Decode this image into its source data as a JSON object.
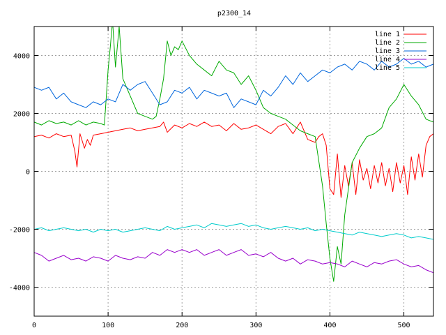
{
  "chart_data": {
    "type": "line",
    "title": "p2300_14",
    "xlabel": "",
    "ylabel": "",
    "xlim": [
      0,
      540
    ],
    "ylim": [
      -5000,
      5000
    ],
    "grid": true,
    "legend_position": "top-right",
    "x_ticks": [
      0,
      100,
      200,
      300,
      400,
      500
    ],
    "y_ticks": [
      -4000,
      -2000,
      0,
      2000,
      4000
    ],
    "series": [
      {
        "name": "line 1",
        "color": "#ff0000",
        "x": [
          0,
          10,
          20,
          30,
          40,
          50,
          55,
          58,
          62,
          68,
          72,
          76,
          80,
          90,
          100,
          110,
          120,
          130,
          140,
          150,
          160,
          170,
          175,
          180,
          190,
          200,
          210,
          220,
          230,
          240,
          250,
          260,
          270,
          280,
          290,
          300,
          310,
          320,
          330,
          340,
          350,
          360,
          370,
          380,
          385,
          390,
          395,
          400,
          405,
          410,
          415,
          420,
          425,
          430,
          435,
          440,
          445,
          450,
          455,
          460,
          465,
          470,
          475,
          480,
          485,
          490,
          495,
          500,
          505,
          510,
          515,
          520,
          525,
          530,
          535,
          540
        ],
        "y": [
          1200,
          1250,
          1150,
          1300,
          1200,
          1250,
          700,
          150,
          1300,
          800,
          1100,
          900,
          1250,
          1300,
          1350,
          1400,
          1450,
          1500,
          1400,
          1450,
          1500,
          1550,
          1700,
          1350,
          1600,
          1500,
          1650,
          1550,
          1700,
          1550,
          1600,
          1400,
          1650,
          1450,
          1500,
          1600,
          1450,
          1300,
          1550,
          1650,
          1300,
          1700,
          1100,
          1000,
          1200,
          1300,
          900,
          -600,
          -800,
          600,
          -900,
          200,
          -500,
          300,
          -800,
          400,
          -300,
          100,
          -600,
          200,
          -400,
          300,
          -500,
          100,
          -700,
          300,
          -400,
          200,
          -800,
          500,
          -300,
          600,
          -200,
          900,
          1200,
          1300
        ]
      },
      {
        "name": "line 2",
        "color": "#00aa00",
        "x": [
          0,
          10,
          20,
          30,
          40,
          50,
          60,
          70,
          80,
          90,
          95,
          100,
          103,
          106,
          110,
          115,
          120,
          130,
          140,
          150,
          160,
          165,
          170,
          175,
          180,
          185,
          190,
          195,
          200,
          210,
          220,
          230,
          240,
          250,
          260,
          270,
          280,
          290,
          300,
          310,
          320,
          330,
          340,
          350,
          360,
          370,
          380,
          390,
          395,
          400,
          405,
          410,
          415,
          420,
          430,
          440,
          450,
          460,
          470,
          480,
          490,
          500,
          510,
          520,
          530,
          540
        ],
        "y": [
          1700,
          1600,
          1750,
          1650,
          1700,
          1600,
          1750,
          1600,
          1700,
          1650,
          1600,
          3500,
          4300,
          5200,
          3600,
          5000,
          3200,
          2600,
          2000,
          1900,
          1800,
          1900,
          2500,
          3200,
          4500,
          4000,
          4300,
          4200,
          4500,
          4000,
          3700,
          3500,
          3300,
          3800,
          3500,
          3400,
          3000,
          3300,
          2800,
          2200,
          2000,
          1900,
          1800,
          1600,
          1400,
          1300,
          1200,
          -500,
          -1800,
          -3000,
          -3800,
          -2600,
          -3200,
          -1500,
          300,
          800,
          1200,
          1300,
          1500,
          2200,
          2500,
          3000,
          2600,
          2300,
          1800,
          1700
        ]
      },
      {
        "name": "line 3",
        "color": "#0066dd",
        "x": [
          0,
          10,
          20,
          30,
          40,
          50,
          60,
          70,
          80,
          90,
          100,
          110,
          120,
          130,
          140,
          150,
          160,
          170,
          180,
          190,
          200,
          210,
          220,
          230,
          240,
          250,
          260,
          270,
          280,
          290,
          300,
          310,
          320,
          330,
          340,
          350,
          360,
          370,
          380,
          390,
          400,
          410,
          420,
          430,
          440,
          450,
          460,
          470,
          480,
          490,
          500,
          510,
          520,
          530,
          540
        ],
        "y": [
          2900,
          2800,
          2900,
          2500,
          2700,
          2400,
          2300,
          2200,
          2400,
          2300,
          2500,
          2400,
          3000,
          2800,
          3000,
          3100,
          2700,
          2300,
          2400,
          2800,
          2700,
          2900,
          2500,
          2800,
          2700,
          2600,
          2700,
          2200,
          2500,
          2400,
          2300,
          2800,
          2600,
          2900,
          3300,
          3000,
          3400,
          3100,
          3300,
          3500,
          3400,
          3600,
          3700,
          3500,
          3800,
          3700,
          3500,
          3800,
          3600,
          3700,
          3900,
          3700,
          3800,
          3600,
          3700
        ]
      },
      {
        "name": "line 4",
        "color": "#9900cc",
        "x": [
          0,
          10,
          20,
          30,
          40,
          50,
          60,
          70,
          80,
          90,
          100,
          110,
          120,
          130,
          140,
          150,
          160,
          170,
          180,
          190,
          200,
          210,
          220,
          230,
          240,
          250,
          260,
          270,
          280,
          290,
          300,
          310,
          320,
          330,
          340,
          350,
          360,
          370,
          380,
          390,
          400,
          410,
          420,
          430,
          440,
          450,
          460,
          470,
          480,
          490,
          500,
          510,
          520,
          530,
          540
        ],
        "y": [
          -2800,
          -2900,
          -3100,
          -3000,
          -2900,
          -3050,
          -3000,
          -3100,
          -2950,
          -3000,
          -3100,
          -2900,
          -3000,
          -3050,
          -2950,
          -3000,
          -2800,
          -2900,
          -2700,
          -2800,
          -2700,
          -2800,
          -2700,
          -2900,
          -2800,
          -2700,
          -2900,
          -2800,
          -2700,
          -2900,
          -2850,
          -2950,
          -2800,
          -3000,
          -3100,
          -3000,
          -3200,
          -3050,
          -3100,
          -3200,
          -3150,
          -3200,
          -3300,
          -3100,
          -3200,
          -3300,
          -3150,
          -3200,
          -3100,
          -3050,
          -3200,
          -3300,
          -3250,
          -3400,
          -3500
        ]
      },
      {
        "name": "line 5",
        "color": "#00cccc",
        "x": [
          0,
          10,
          20,
          30,
          40,
          50,
          60,
          70,
          80,
          90,
          100,
          110,
          120,
          130,
          140,
          150,
          160,
          170,
          180,
          190,
          200,
          210,
          220,
          230,
          240,
          250,
          260,
          270,
          280,
          290,
          300,
          310,
          320,
          330,
          340,
          350,
          360,
          370,
          380,
          390,
          400,
          410,
          420,
          430,
          440,
          450,
          460,
          470,
          480,
          490,
          500,
          510,
          520,
          530,
          540
        ],
        "y": [
          -2000,
          -1950,
          -2050,
          -2000,
          -1950,
          -2000,
          -2050,
          -2000,
          -2100,
          -2000,
          -2050,
          -2000,
          -2100,
          -2050,
          -2000,
          -1950,
          -2000,
          -2050,
          -1900,
          -2000,
          -1950,
          -1900,
          -1850,
          -1950,
          -1800,
          -1850,
          -1900,
          -1850,
          -1800,
          -1900,
          -1850,
          -1950,
          -2000,
          -1950,
          -1900,
          -1950,
          -2000,
          -1950,
          -2050,
          -2000,
          -2050,
          -2100,
          -2150,
          -2200,
          -2100,
          -2150,
          -2200,
          -2250,
          -2200,
          -2150,
          -2200,
          -2300,
          -2250,
          -2300,
          -2350
        ]
      }
    ]
  }
}
